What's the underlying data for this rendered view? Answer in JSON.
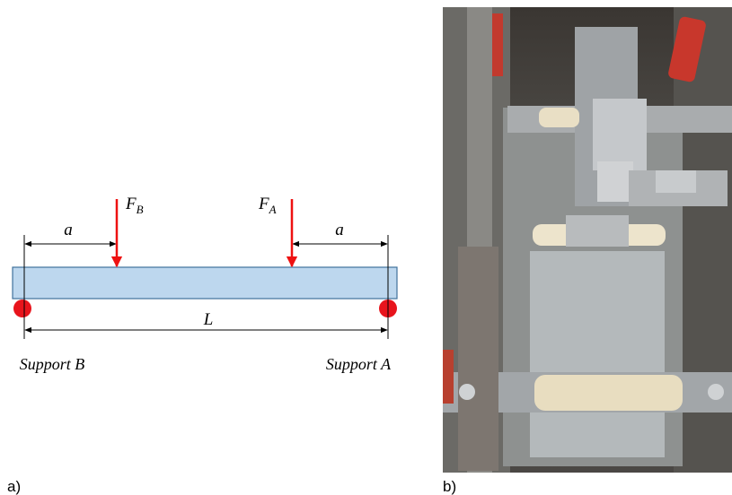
{
  "panels": [
    {
      "label": "a)",
      "forces": [
        {
          "symbol": "F",
          "subscript": "B"
        },
        {
          "symbol": "F",
          "subscript": "A"
        }
      ],
      "dimensions": {
        "left": "a",
        "right": "a",
        "span": "L"
      },
      "supports": {
        "left": "Support B",
        "right": "Support A"
      }
    },
    {
      "label": "b)"
    }
  ]
}
